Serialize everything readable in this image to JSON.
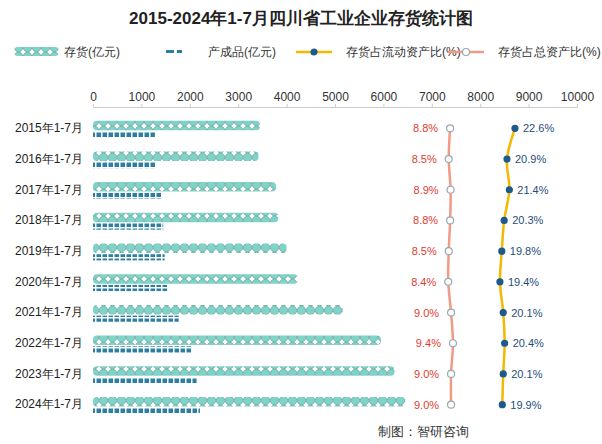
{
  "chart_data": {
    "type": "bar",
    "title": "2015-2024年1-7月四川省工业企业存货统计图",
    "orientation": "horizontal",
    "grid": false,
    "legend": "top",
    "tick_labels": "x",
    "categories": [
      "2015年1-7月",
      "2016年1-7月",
      "2017年1-7月",
      "2018年1-7月",
      "2019年1-7月",
      "2020年1-7月",
      "2021年1-7月",
      "2022年1-7月",
      "2023年1-7月",
      "2024年1-7月"
    ],
    "xlim": [
      0,
      10000
    ],
    "xticks": [
      0,
      1000,
      2000,
      3000,
      4000,
      5000,
      6000,
      7000,
      8000,
      9000,
      10000
    ],
    "y2lim": [
      -67.2,
      35.8
    ],
    "series": [
      {
        "name": "存货(亿元)",
        "type": "bar",
        "color": "#7fd3c8",
        "values": [
          3450,
          3420,
          3780,
          3830,
          4000,
          4230,
          5160,
          5950,
          6230,
          6450
        ]
      },
      {
        "name": "产成品(亿元)",
        "type": "bar",
        "color": "#2b7fa3",
        "values": [
          1280,
          1300,
          1420,
          1450,
          1480,
          1530,
          1770,
          2040,
          2140,
          2210
        ]
      },
      {
        "name": "存货占流动资产比(%)",
        "type": "line",
        "axis": "y2",
        "color": "#f5b700",
        "marker": "circle",
        "line_style": "smooth",
        "data_labels": true,
        "values": [
          22.6,
          20.9,
          21.4,
          20.3,
          19.8,
          19.4,
          20.1,
          20.4,
          20.1,
          19.9
        ],
        "value_labels": [
          "22.6%",
          "20.9%",
          "21.4%",
          "20.3%",
          "19.8%",
          "19.4%",
          "20.1%",
          "20.4%",
          "20.1%",
          "19.9%"
        ]
      },
      {
        "name": "存货占总资产比(%)",
        "type": "line",
        "axis": "y2",
        "color": "#f19a85",
        "marker": "circle",
        "line_style": "smooth",
        "data_labels": true,
        "values": [
          8.8,
          8.5,
          8.9,
          8.8,
          8.5,
          8.4,
          9.0,
          9.4,
          9.0,
          9.0
        ],
        "value_labels": [
          "8.8%",
          "8.5%",
          "8.9%",
          "8.8%",
          "8.5%",
          "8.4%",
          "9.0%",
          "9.4%",
          "9.0%",
          "9.0%"
        ]
      }
    ],
    "annotations": [
      "制图：智研咨询"
    ]
  }
}
